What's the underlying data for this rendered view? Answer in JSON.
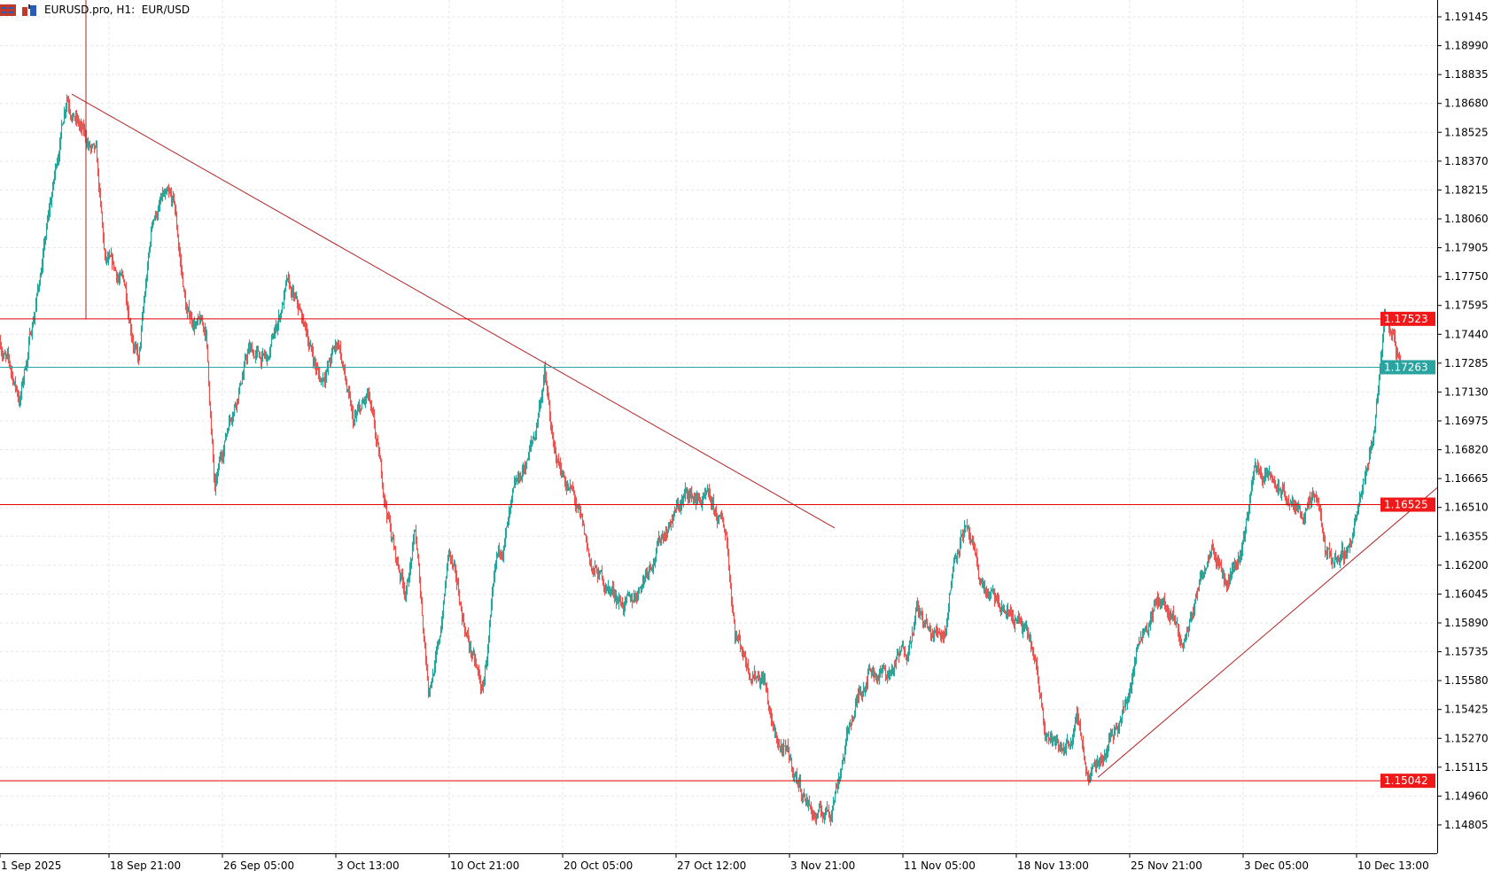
{
  "header": {
    "title": "EURUSD.pro, H1:  EUR/USD",
    "icons": [
      "menu-icon",
      "chart-type-icon"
    ]
  },
  "colors": {
    "up": "#26a69a",
    "down": "#ef5350",
    "level": "#e00000",
    "trend": "#b22222",
    "current": "#2aa4a0",
    "grid": "#e6e6e6"
  },
  "chart_data": {
    "type": "candlestick",
    "symbol": "EURUSD.pro",
    "timeframe": "H1",
    "ylim": [
      1.14665,
      1.19235
    ],
    "price_ticks": [
      "1.19145",
      "1.18990",
      "1.18835",
      "1.18680",
      "1.18525",
      "1.18370",
      "1.18215",
      "1.18060",
      "1.17905",
      "1.17750",
      "1.17595",
      "1.17440",
      "1.17285",
      "1.17130",
      "1.16975",
      "1.16820",
      "1.16665",
      "1.16510",
      "1.16355",
      "1.16200",
      "1.16045",
      "1.15890",
      "1.15735",
      "1.15580",
      "1.15425",
      "1.15270",
      "1.15115",
      "1.14960",
      "1.14805"
    ],
    "time_ticks": [
      {
        "label": "1 Sep 2025",
        "bar": 0
      },
      {
        "label": "18 Sep 21:00",
        "bar": 123
      },
      {
        "label": "26 Sep 05:00",
        "bar": 251
      },
      {
        "label": "3 Oct 13:00",
        "bar": 379
      },
      {
        "label": "10 Oct 21:00",
        "bar": 507
      },
      {
        "label": "20 Oct 05:00",
        "bar": 635
      },
      {
        "label": "27 Oct 12:00",
        "bar": 763
      },
      {
        "label": "3 Nov 21:00",
        "bar": 891
      },
      {
        "label": "11 Nov 05:00",
        "bar": 1019
      },
      {
        "label": "18 Nov 13:00",
        "bar": 1147
      },
      {
        "label": "25 Nov 21:00",
        "bar": 1275
      },
      {
        "label": "3 Dec 05:00",
        "bar": 1403
      },
      {
        "label": "10 Dec 13:00",
        "bar": 1531
      }
    ],
    "bar_count": 1582,
    "price_path": [
      [
        0,
        1.174
      ],
      [
        22,
        1.1709
      ],
      [
        43,
        1.177
      ],
      [
        59,
        1.1821
      ],
      [
        75,
        1.1875
      ],
      [
        92,
        1.1852
      ],
      [
        108,
        1.1837
      ],
      [
        118,
        1.1781
      ],
      [
        140,
        1.177
      ],
      [
        156,
        1.1729
      ],
      [
        172,
        1.1806
      ],
      [
        183,
        1.1816
      ],
      [
        196,
        1.1811
      ],
      [
        210,
        1.1755
      ],
      [
        232,
        1.1745
      ],
      [
        242,
        1.1658
      ],
      [
        258,
        1.1699
      ],
      [
        280,
        1.1735
      ],
      [
        302,
        1.1729
      ],
      [
        323,
        1.177
      ],
      [
        345,
        1.1745
      ],
      [
        361,
        1.1719
      ],
      [
        382,
        1.174
      ],
      [
        398,
        1.1694
      ],
      [
        415,
        1.1709
      ],
      [
        431,
        1.1663
      ],
      [
        447,
        1.1622
      ],
      [
        458,
        1.1607
      ],
      [
        468,
        1.1637
      ],
      [
        483,
        1.1556
      ],
      [
        495,
        1.1576
      ],
      [
        506,
        1.1627
      ],
      [
        522,
        1.1591
      ],
      [
        544,
        1.155
      ],
      [
        560,
        1.1617
      ],
      [
        582,
        1.1658
      ],
      [
        603,
        1.1689
      ],
      [
        614,
        1.1724
      ],
      [
        625,
        1.1678
      ],
      [
        646,
        1.1658
      ],
      [
        668,
        1.1617
      ],
      [
        689,
        1.1607
      ],
      [
        711,
        1.1597
      ],
      [
        732,
        1.1622
      ],
      [
        754,
        1.1643
      ],
      [
        775,
        1.1658
      ],
      [
        797,
        1.1653
      ],
      [
        819,
        1.1637
      ],
      [
        829,
        1.1586
      ],
      [
        845,
        1.1566
      ],
      [
        862,
        1.1561
      ],
      [
        872,
        1.153
      ],
      [
        889,
        1.1515
      ],
      [
        905,
        1.1499
      ],
      [
        921,
        1.1484
      ],
      [
        937,
        1.1489
      ],
      [
        959,
        1.1535
      ],
      [
        980,
        1.1566
      ],
      [
        1002,
        1.1561
      ],
      [
        1023,
        1.1576
      ],
      [
        1034,
        1.1597
      ],
      [
        1050,
        1.1581
      ],
      [
        1066,
        1.1586
      ],
      [
        1077,
        1.1627
      ],
      [
        1088,
        1.1643
      ],
      [
        1104,
        1.1612
      ],
      [
        1125,
        1.1597
      ],
      [
        1147,
        1.1591
      ],
      [
        1163,
        1.1576
      ],
      [
        1179,
        1.1535
      ],
      [
        1195,
        1.152
      ],
      [
        1217,
        1.1535
      ],
      [
        1228,
        1.1505
      ],
      [
        1249,
        1.1525
      ],
      [
        1271,
        1.1546
      ],
      [
        1287,
        1.1586
      ],
      [
        1309,
        1.1602
      ],
      [
        1335,
        1.1576
      ],
      [
        1352,
        1.1607
      ],
      [
        1368,
        1.1637
      ],
      [
        1384,
        1.1612
      ],
      [
        1400,
        1.1627
      ],
      [
        1416,
        1.1673
      ],
      [
        1438,
        1.1663
      ],
      [
        1465,
        1.1648
      ],
      [
        1486,
        1.1653
      ],
      [
        1497,
        1.1622
      ],
      [
        1519,
        1.1627
      ],
      [
        1540,
        1.1663
      ],
      [
        1551,
        1.1694
      ],
      [
        1562,
        1.1755
      ],
      [
        1572,
        1.1742
      ],
      [
        1581,
        1.1726
      ]
    ],
    "levels": [
      {
        "price": 1.17523,
        "label": "1.17523",
        "kind": "resistance"
      },
      {
        "price": 1.17263,
        "label": "1.17263",
        "kind": "current"
      },
      {
        "price": 1.16525,
        "label": "1.16525",
        "kind": "resistance"
      },
      {
        "price": 1.15042,
        "label": "1.15042",
        "kind": "support"
      }
    ],
    "trendlines": [
      {
        "name": "descending-trendline",
        "from": [
          81,
          1.1873
        ],
        "to": [
          942,
          1.164
        ]
      },
      {
        "name": "ascending-trendline",
        "from": [
          1239,
          1.1506
        ],
        "to": [
          1623,
          1.1662
        ]
      },
      {
        "name": "vertical-marker-line",
        "from": [
          97,
          1.1925
        ],
        "to": [
          97,
          1.1752
        ]
      }
    ]
  }
}
